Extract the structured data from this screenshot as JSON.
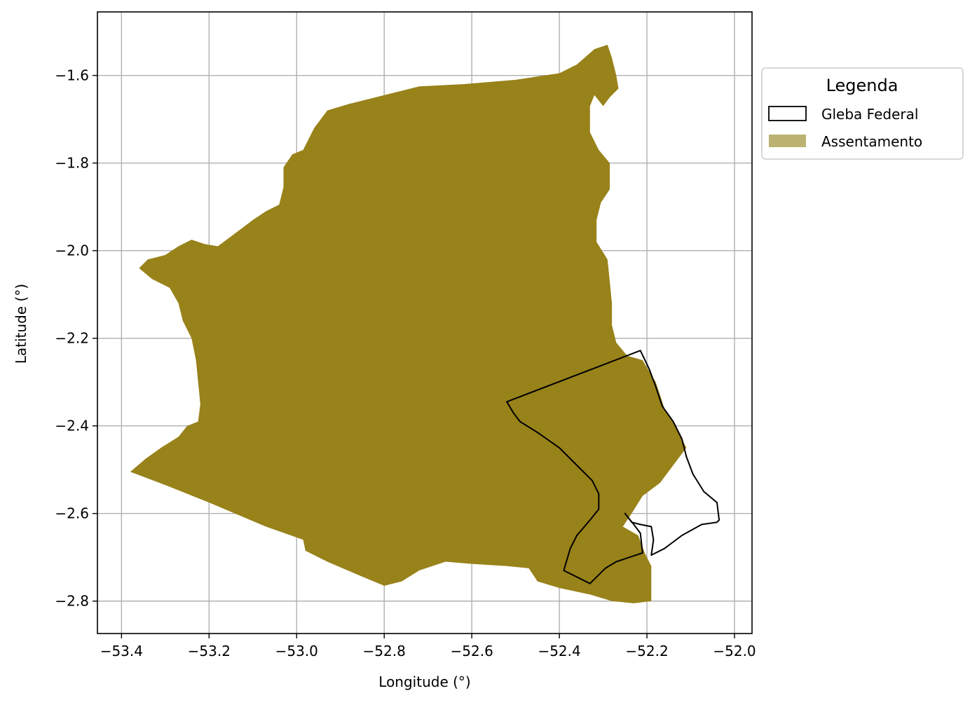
{
  "chart_data": {
    "type": "map",
    "xlabel": "Longitude (°)",
    "ylabel": "Latitude (°)",
    "xlim": [
      -53.455,
      -51.96
    ],
    "ylim": [
      -2.874,
      -1.455
    ],
    "xticks": [
      -53.4,
      -53.2,
      -53.0,
      -52.8,
      -52.6,
      -52.4,
      -52.2,
      -52.0
    ],
    "xtick_labels": [
      "−53.4",
      "−53.2",
      "−53.0",
      "−52.8",
      "−52.6",
      "−52.4",
      "−52.2",
      "−52.0"
    ],
    "yticks": [
      -1.6,
      -1.8,
      -2.0,
      -2.2,
      -2.4,
      -2.6,
      -2.8
    ],
    "ytick_labels": [
      "−1.6",
      "−1.8",
      "−2.0",
      "−2.2",
      "−2.4",
      "−2.6",
      "−2.8"
    ],
    "grid": true,
    "legend": {
      "title": "Legenda",
      "placement": "outside upper right",
      "entries": [
        {
          "label": "Gleba Federal",
          "style": "outline",
          "color": "#000000"
        },
        {
          "label": "Assentamento",
          "style": "fill",
          "color": "#bcb271"
        }
      ]
    },
    "layers": [
      {
        "name": "Assentamento",
        "style": "fill",
        "color": "#98821a",
        "polygon": [
          [
            -53.38,
            -2.505
          ],
          [
            -53.345,
            -2.475
          ],
          [
            -53.31,
            -2.45
          ],
          [
            -53.27,
            -2.425
          ],
          [
            -53.25,
            -2.4
          ],
          [
            -53.225,
            -2.39
          ],
          [
            -53.22,
            -2.35
          ],
          [
            -53.225,
            -2.3
          ],
          [
            -53.23,
            -2.25
          ],
          [
            -53.24,
            -2.2
          ],
          [
            -53.26,
            -2.16
          ],
          [
            -53.27,
            -2.12
          ],
          [
            -53.29,
            -2.085
          ],
          [
            -53.33,
            -2.065
          ],
          [
            -53.36,
            -2.04
          ],
          [
            -53.34,
            -2.02
          ],
          [
            -53.3,
            -2.01
          ],
          [
            -53.27,
            -1.99
          ],
          [
            -53.24,
            -1.975
          ],
          [
            -53.21,
            -1.985
          ],
          [
            -53.18,
            -1.99
          ],
          [
            -53.14,
            -1.96
          ],
          [
            -53.1,
            -1.93
          ],
          [
            -53.07,
            -1.91
          ],
          [
            -53.04,
            -1.895
          ],
          [
            -53.03,
            -1.855
          ],
          [
            -53.03,
            -1.81
          ],
          [
            -53.01,
            -1.78
          ],
          [
            -52.985,
            -1.77
          ],
          [
            -52.96,
            -1.72
          ],
          [
            -52.93,
            -1.68
          ],
          [
            -52.88,
            -1.665
          ],
          [
            -52.8,
            -1.645
          ],
          [
            -52.72,
            -1.625
          ],
          [
            -52.62,
            -1.62
          ],
          [
            -52.5,
            -1.61
          ],
          [
            -52.4,
            -1.595
          ],
          [
            -52.36,
            -1.575
          ],
          [
            -52.32,
            -1.54
          ],
          [
            -52.29,
            -1.53
          ],
          [
            -52.28,
            -1.56
          ],
          [
            -52.27,
            -1.6
          ],
          [
            -52.265,
            -1.63
          ],
          [
            -52.285,
            -1.65
          ],
          [
            -52.3,
            -1.67
          ],
          [
            -52.32,
            -1.645
          ],
          [
            -52.33,
            -1.67
          ],
          [
            -52.33,
            -1.73
          ],
          [
            -52.31,
            -1.77
          ],
          [
            -52.285,
            -1.8
          ],
          [
            -52.285,
            -1.86
          ],
          [
            -52.305,
            -1.89
          ],
          [
            -52.315,
            -1.93
          ],
          [
            -52.315,
            -1.98
          ],
          [
            -52.29,
            -2.02
          ],
          [
            -52.285,
            -2.07
          ],
          [
            -52.28,
            -2.12
          ],
          [
            -52.28,
            -2.17
          ],
          [
            -52.27,
            -2.21
          ],
          [
            -52.245,
            -2.24
          ],
          [
            -52.21,
            -2.25
          ],
          [
            -52.18,
            -2.3
          ],
          [
            -52.16,
            -2.36
          ],
          [
            -52.13,
            -2.41
          ],
          [
            -52.11,
            -2.45
          ],
          [
            -52.14,
            -2.49
          ],
          [
            -52.17,
            -2.53
          ],
          [
            -52.21,
            -2.56
          ],
          [
            -52.235,
            -2.6
          ],
          [
            -52.255,
            -2.63
          ],
          [
            -52.22,
            -2.65
          ],
          [
            -52.205,
            -2.69
          ],
          [
            -52.19,
            -2.72
          ],
          [
            -52.19,
            -2.75
          ],
          [
            -52.19,
            -2.8
          ],
          [
            -52.23,
            -2.805
          ],
          [
            -52.28,
            -2.8
          ],
          [
            -52.33,
            -2.785
          ],
          [
            -52.4,
            -2.77
          ],
          [
            -52.45,
            -2.755
          ],
          [
            -52.47,
            -2.725
          ],
          [
            -52.52,
            -2.72
          ],
          [
            -52.6,
            -2.715
          ],
          [
            -52.66,
            -2.71
          ],
          [
            -52.72,
            -2.73
          ],
          [
            -52.76,
            -2.755
          ],
          [
            -52.8,
            -2.765
          ],
          [
            -52.86,
            -2.74
          ],
          [
            -52.93,
            -2.71
          ],
          [
            -52.98,
            -2.685
          ],
          [
            -52.985,
            -2.66
          ],
          [
            -53.07,
            -2.63
          ],
          [
            -53.2,
            -2.575
          ],
          [
            -53.3,
            -2.535
          ]
        ]
      },
      {
        "name": "Gleba Federal",
        "style": "outline",
        "color": "#000000",
        "polygon": [
          [
            -52.52,
            -2.345
          ],
          [
            -52.215,
            -2.228
          ],
          [
            -52.195,
            -2.27
          ],
          [
            -52.18,
            -2.31
          ],
          [
            -52.165,
            -2.355
          ],
          [
            -52.14,
            -2.39
          ],
          [
            -52.12,
            -2.43
          ],
          [
            -52.11,
            -2.47
          ],
          [
            -52.095,
            -2.51
          ],
          [
            -52.07,
            -2.55
          ],
          [
            -52.04,
            -2.575
          ],
          [
            -52.035,
            -2.615
          ],
          [
            -52.04,
            -2.62
          ],
          [
            -52.075,
            -2.625
          ],
          [
            -52.12,
            -2.65
          ],
          [
            -52.16,
            -2.68
          ],
          [
            -52.19,
            -2.695
          ],
          [
            -52.185,
            -2.66
          ],
          [
            -52.19,
            -2.63
          ],
          [
            -52.215,
            -2.625
          ],
          [
            -52.235,
            -2.62
          ],
          [
            -52.25,
            -2.6
          ],
          [
            -52.23,
            -2.625
          ],
          [
            -52.215,
            -2.645
          ],
          [
            -52.21,
            -2.69
          ],
          [
            -52.24,
            -2.7
          ],
          [
            -52.27,
            -2.71
          ],
          [
            -52.295,
            -2.725
          ],
          [
            -52.33,
            -2.76
          ],
          [
            -52.39,
            -2.73
          ],
          [
            -52.375,
            -2.68
          ],
          [
            -52.36,
            -2.65
          ],
          [
            -52.33,
            -2.615
          ],
          [
            -52.31,
            -2.59
          ],
          [
            -52.31,
            -2.555
          ],
          [
            -52.325,
            -2.525
          ],
          [
            -52.36,
            -2.49
          ],
          [
            -52.4,
            -2.45
          ],
          [
            -52.45,
            -2.415
          ],
          [
            -52.49,
            -2.39
          ],
          [
            -52.505,
            -2.37
          ]
        ]
      }
    ]
  }
}
